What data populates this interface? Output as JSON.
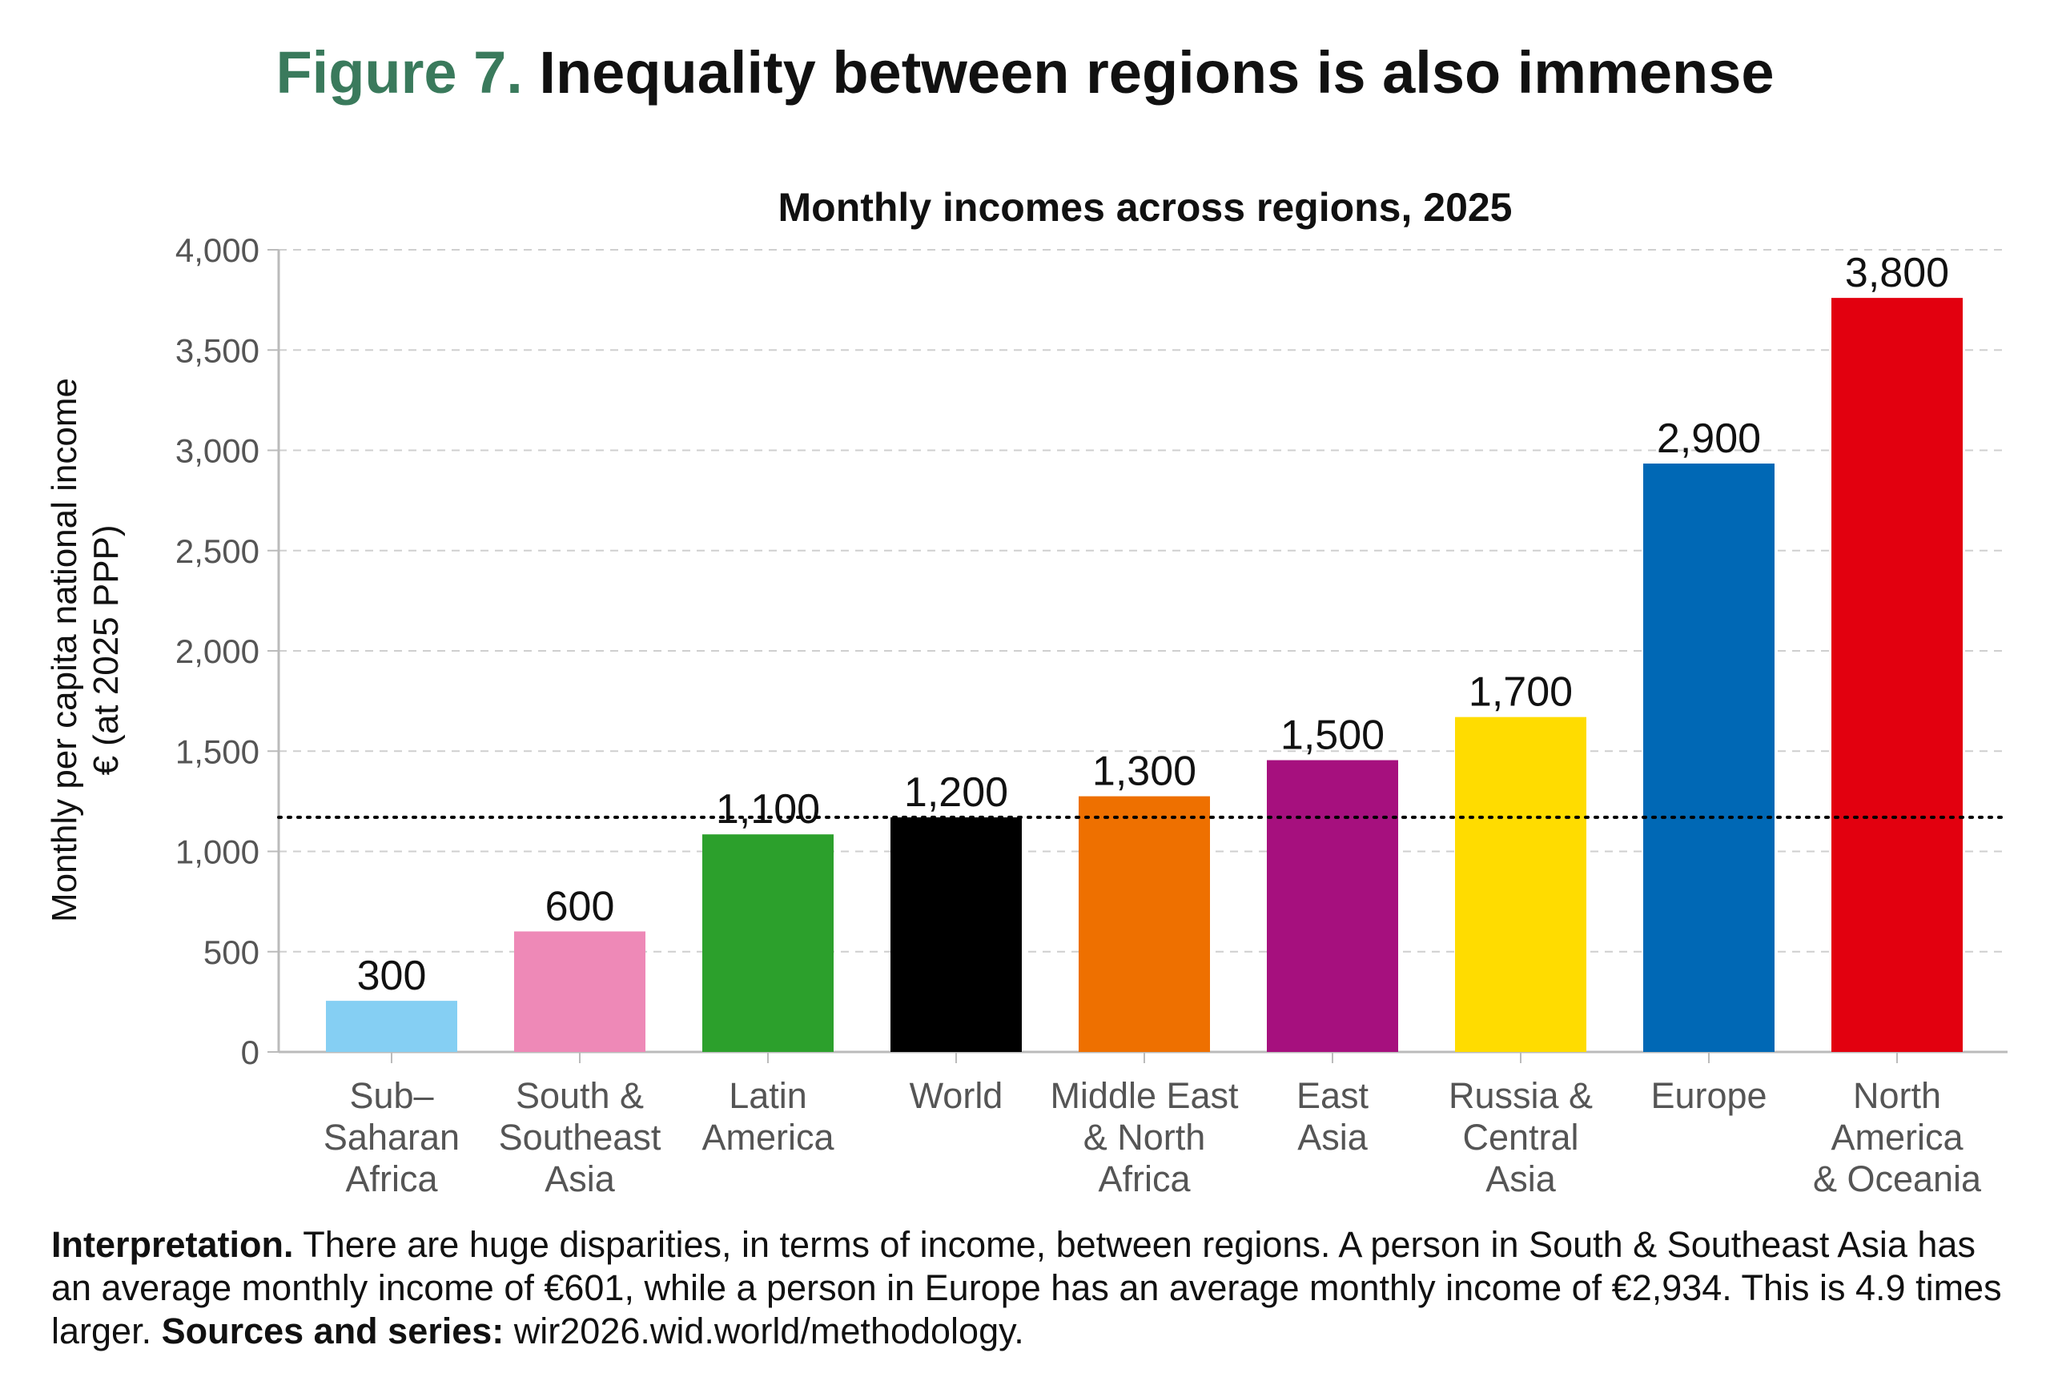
{
  "figure": {
    "number": "Figure 7.",
    "title": "Inequality between regions is also immense"
  },
  "chart_data": {
    "type": "bar",
    "title": "Monthly incomes across regions, 2025",
    "ylabel": [
      "Monthly per capita national income",
      "€ (at 2025 PPP)"
    ],
    "xlabel": "",
    "ylim": [
      0,
      4000
    ],
    "yticks": [
      0,
      500,
      1000,
      1500,
      2000,
      2500,
      3000,
      3500,
      4000
    ],
    "ytick_labels": [
      "0",
      "500",
      "1,000",
      "1,500",
      "2,000",
      "2,500",
      "3,000",
      "3,500",
      "4,000"
    ],
    "grid": "horizontal dashed",
    "categories": [
      [
        "Sub–",
        "Saharan",
        "Africa"
      ],
      [
        "South &",
        "Southeast",
        "Asia"
      ],
      [
        "Latin",
        "America"
      ],
      [
        "World"
      ],
      [
        "Middle East",
        "& North",
        "Africa"
      ],
      [
        "East",
        "Asia"
      ],
      [
        "Russia &",
        "Central",
        "Asia"
      ],
      [
        "Europe"
      ],
      [
        "North",
        "America",
        "& Oceania"
      ]
    ],
    "values": [
      255,
      601,
      1085,
      1170,
      1275,
      1455,
      1670,
      2934,
      3760
    ],
    "data_labels": [
      "300",
      "600",
      "1,100",
      "1,200",
      "1,300",
      "1,500",
      "1,700",
      "2,900",
      "3,800"
    ],
    "colors": [
      "#85cff3",
      "#ee89b7",
      "#2ca02c",
      "#000000",
      "#ee7000",
      "#a6107e",
      "#ffdc00",
      "#0068b5",
      "#e2000f"
    ],
    "reference_line": {
      "value": 1170,
      "style": "dotted",
      "color": "#000000"
    }
  },
  "footnote": {
    "interpretation_label": "Interpretation.",
    "interpretation_text": " There are huge disparities, in terms of income, between regions. A person in South & Southeast Asia has an average monthly income of €601, while a person in Europe has an average monthly income of €2,934. This is 4.9 times larger. ",
    "sources_label": "Sources and series:",
    "sources_text": " wir2026.wid.world/methodology."
  }
}
